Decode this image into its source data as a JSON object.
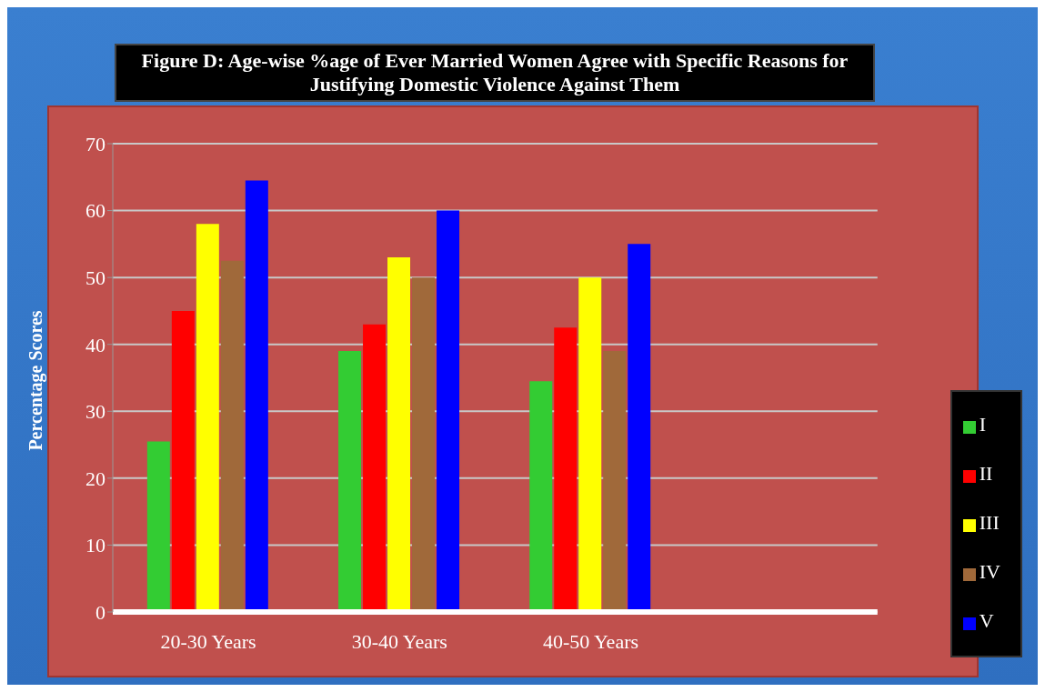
{
  "chart_data": {
    "type": "bar",
    "title": "Figure D: Age-wise %age of Ever Married Women Agree with Specific Reasons for Justifying Domestic Violence Against Them",
    "ylabel": "Percentage Scores",
    "categories": [
      "20-30 Years",
      "30-40 Years",
      "40-50 Years",
      null
    ],
    "series": [
      {
        "name": "I",
        "color": "#33cc33",
        "values": [
          25.5,
          39,
          34.5,
          null
        ]
      },
      {
        "name": "II",
        "color": "#ff0000",
        "values": [
          45,
          43,
          42.5,
          null
        ]
      },
      {
        "name": "III",
        "color": "#ffff00",
        "values": [
          58,
          53,
          50,
          null
        ]
      },
      {
        "name": "IV",
        "color": "#a0693a",
        "values": [
          52.5,
          50,
          39,
          null
        ]
      },
      {
        "name": "V",
        "color": "#0000ff",
        "values": [
          64.5,
          60,
          55,
          null
        ]
      }
    ],
    "ylim": [
      0,
      70
    ],
    "yticks": [
      0,
      10,
      20,
      30,
      40,
      50,
      60,
      70
    ],
    "grid": "y",
    "legend": "right"
  }
}
